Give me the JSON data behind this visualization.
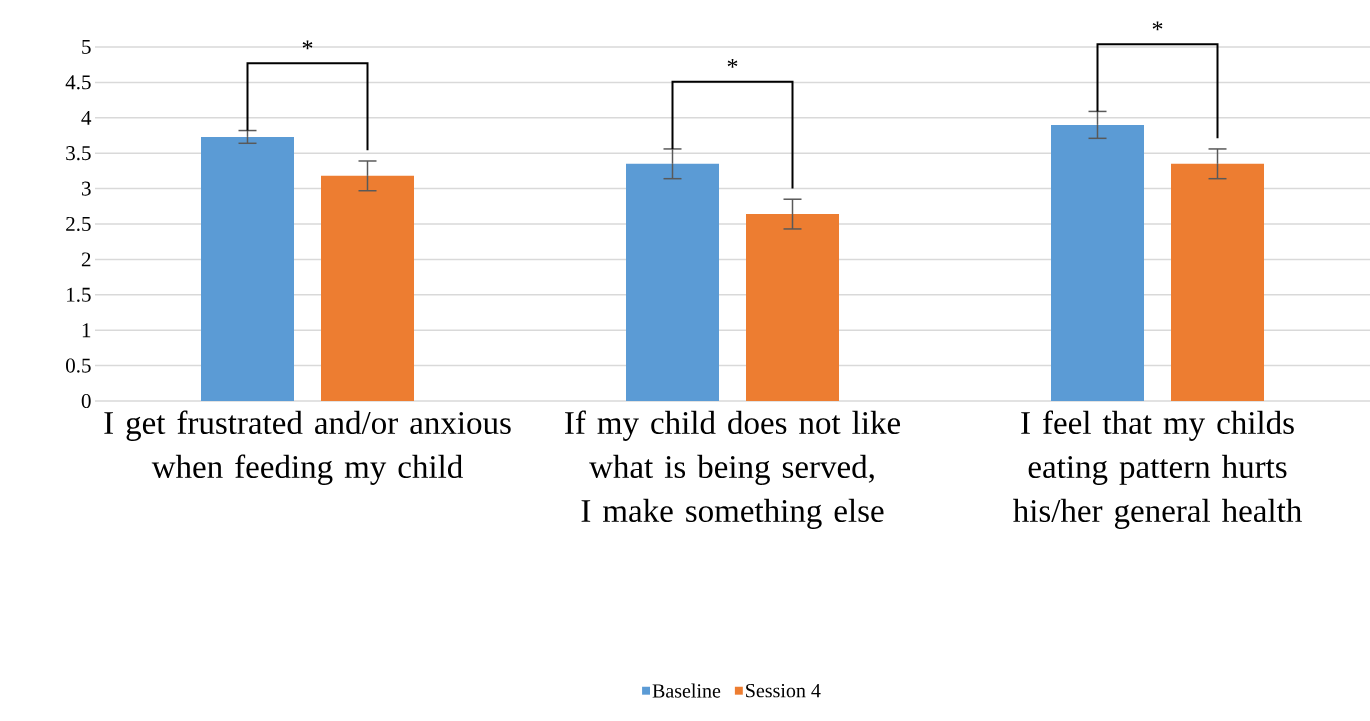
{
  "chart_data": {
    "type": "bar",
    "categories": [
      "I get frustrated and/or anxious when feeding my child",
      "If my child does not like what is being served, I make something else",
      "I feel that my childs eating pattern hurts his/her general health"
    ],
    "series": [
      {
        "name": "Baseline",
        "color": "#5b9bd5",
        "values": [
          3.73,
          3.35,
          3.9
        ],
        "errors": [
          0.09,
          0.21,
          0.19
        ]
      },
      {
        "name": "Session 4",
        "color": "#ed7d31",
        "values": [
          3.18,
          2.64,
          3.35
        ],
        "errors": [
          0.21,
          0.21,
          0.21
        ]
      }
    ],
    "ylim": [
      0,
      5
    ],
    "yticks": [
      0,
      0.5,
      1,
      1.5,
      2,
      2.5,
      3,
      3.5,
      4,
      4.5,
      5
    ],
    "grid": "y",
    "legend": "bottom",
    "annotations": [
      "*",
      "*",
      "*"
    ]
  }
}
